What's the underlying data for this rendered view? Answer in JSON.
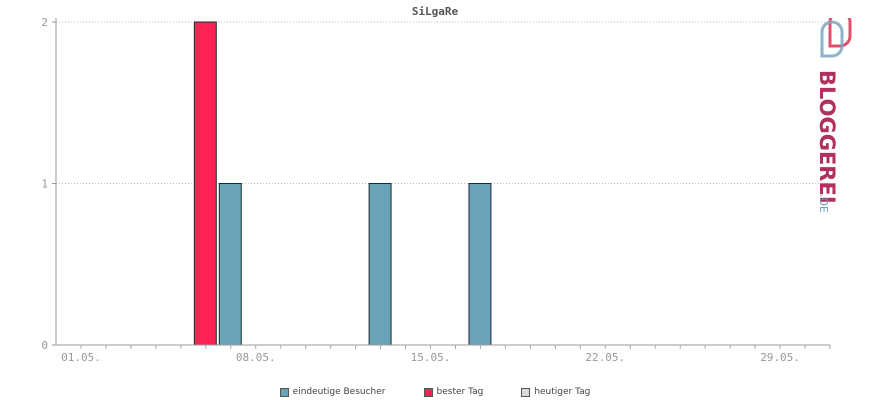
{
  "chart_data": {
    "type": "bar",
    "title": "SiLgaRe",
    "x_ticks": [
      "01.05.",
      "08.05.",
      "15.05.",
      "22.05.",
      "29.05."
    ],
    "x_tick_days": [
      1,
      8,
      15,
      22,
      29
    ],
    "xlim": [
      0,
      31
    ],
    "ylim": [
      0,
      2
    ],
    "y_ticks": [
      "0",
      "1",
      "2"
    ],
    "grid": true,
    "legend_position": "bottom",
    "series": [
      {
        "name": "eindeutige Besucher",
        "color": "#6aa3b8",
        "points": [
          {
            "day": 7,
            "value": 1
          },
          {
            "day": 13,
            "value": 1
          },
          {
            "day": 17,
            "value": 1
          }
        ]
      },
      {
        "name": "bester Tag",
        "color": "#ff2255",
        "points": [
          {
            "day": 6,
            "value": 2
          }
        ]
      },
      {
        "name": "heutiger Tag",
        "color": "#d9d9d9",
        "points": []
      }
    ]
  },
  "legend": [
    {
      "label": "eindeutige Besucher",
      "color": "#6aa3b8"
    },
    {
      "label": "bester Tag",
      "color": "#ff2255"
    },
    {
      "label": "heutiger Tag",
      "color": "#d9d9d9"
    }
  ],
  "brand": {
    "name": "BLOGGEREI",
    "suffix": ".DE",
    "color": "#b03060",
    "accent": "#6a9ab5"
  }
}
